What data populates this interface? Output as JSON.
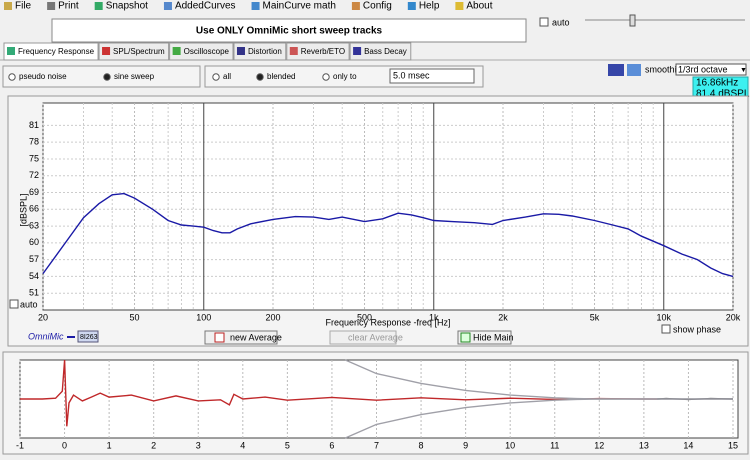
{
  "menu": [
    "File",
    "Print",
    "Snapshot",
    "AddedCurves",
    "MainCurve math",
    "Config",
    "Help",
    "About"
  ],
  "banner": "Use ONLY OmniMic short sweep tracks",
  "auto_top": "auto",
  "tabs": [
    "Frequency Response",
    "SPL/Spectrum",
    "Oscilloscope",
    "Distortion",
    "Reverb/ETO",
    "Bass Decay"
  ],
  "signal_options": [
    "pseudo noise",
    "sine sweep"
  ],
  "window_options": [
    "all",
    "blended",
    "only to"
  ],
  "window_time": "5.0 msec",
  "smoothing_label": "smoothing",
  "smoothing_value": "1/3rd octave",
  "readout": [
    "16.86kHz",
    "81.4 dBSPL"
  ],
  "auto_chart": "auto",
  "legend_tag": "8I263",
  "buttons": [
    "new Average",
    "clear Average",
    "Hide Main"
  ],
  "show_phase": "show phase",
  "chart_data": [
    {
      "type": "line",
      "y_label": "[dBSPL]",
      "x_label": "Frequency Response -freq [Hz]",
      "log_x": true,
      "grid": true,
      "xlim": [
        20,
        20000
      ],
      "ylim": [
        48,
        85
      ],
      "xticks": [
        20,
        50,
        100,
        200,
        500,
        {
          "value": 1000,
          "label": "1k"
        },
        {
          "value": 2000,
          "label": "2k"
        },
        {
          "value": 5000,
          "label": "5k"
        },
        {
          "value": 10000,
          "label": "10k"
        },
        {
          "value": 20000,
          "label": "20k"
        }
      ],
      "xgrid_minor": [
        30,
        40,
        60,
        70,
        80,
        90,
        300,
        400,
        600,
        700,
        800,
        900,
        3000,
        4000,
        6000,
        7000,
        8000,
        9000
      ],
      "yticks": [
        51,
        54,
        57,
        60,
        63,
        66,
        69,
        72,
        75,
        78,
        81
      ],
      "series": [
        {
          "name": "OmniMic",
          "color": "#1a1aa6",
          "x": [
            20,
            25,
            30,
            35,
            40,
            45,
            50,
            60,
            70,
            80,
            90,
            100,
            110,
            120,
            130,
            140,
            160,
            200,
            250,
            300,
            350,
            400,
            500,
            600,
            700,
            800,
            900,
            1000,
            1200,
            1500,
            1800,
            2000,
            2500,
            3000,
            3500,
            4000,
            5000,
            6000,
            7000,
            8000,
            10000,
            12000,
            14000,
            16000,
            18000,
            20000
          ],
          "values": [
            54.5,
            60,
            64.5,
            67,
            68.6,
            68.8,
            68,
            66,
            64,
            63.2,
            63,
            62.8,
            62.2,
            61.8,
            61.8,
            62.5,
            63.4,
            64.2,
            64.7,
            64.6,
            64.2,
            64.6,
            63.8,
            64.3,
            65.3,
            65,
            64.5,
            64,
            63.8,
            63.6,
            63.3,
            64,
            64.6,
            65.2,
            65.1,
            64.8,
            64,
            63.2,
            62.5,
            61.2,
            59.5,
            58,
            57,
            55.5,
            54.5,
            54
          ]
        }
      ]
    },
    {
      "type": "line",
      "xlim": [
        -1,
        15
      ],
      "ylim": [
        -1,
        1
      ],
      "grid": true,
      "xticks": [
        -1,
        0,
        1,
        2,
        3,
        4,
        5,
        6,
        7,
        8,
        9,
        10,
        11,
        12,
        13,
        14,
        15
      ],
      "series": [
        {
          "color": "#c0282a",
          "x": [
            -1,
            -0.5,
            -0.2,
            -0.05,
            0,
            0.05,
            0.1,
            0.2,
            0.4,
            0.6,
            0.8,
            1,
            1.5,
            2,
            2.5,
            3,
            3.5,
            3.7,
            3.8,
            4,
            4.5,
            5,
            6,
            7,
            8,
            9,
            10,
            11,
            12,
            13,
            13.3
          ],
          "values": [
            0,
            0,
            0.02,
            0.2,
            1,
            -0.7,
            -0.1,
            0.1,
            -0.05,
            0.05,
            0.15,
            0.05,
            0.1,
            -0.05,
            0.08,
            -0.05,
            -0.02,
            -0.15,
            0.12,
            0,
            0.05,
            -0.03,
            0.04,
            -0.03,
            0.03,
            -0.02,
            0.02,
            -0.01,
            0.01,
            0,
            0
          ]
        },
        {
          "color": "#111111",
          "x": [
            13.3,
            13.5,
            14,
            14.5,
            15
          ],
          "values": [
            0,
            0.01,
            -0.01,
            0.01,
            0
          ]
        },
        {
          "color": "#a0a0a8",
          "x": [
            6.3,
            7,
            8,
            9,
            10,
            11,
            11.5,
            12,
            15
          ],
          "values": [
            1,
            0.65,
            0.4,
            0.22,
            0.1,
            0.03,
            0.01,
            0,
            0
          ]
        },
        {
          "color": "#a0a0a8",
          "x": [
            6.3,
            7,
            8,
            9,
            10,
            11,
            11.5,
            12,
            15
          ],
          "values": [
            -1,
            -0.65,
            -0.4,
            -0.22,
            -0.1,
            -0.03,
            -0.01,
            0,
            0
          ]
        }
      ]
    }
  ]
}
